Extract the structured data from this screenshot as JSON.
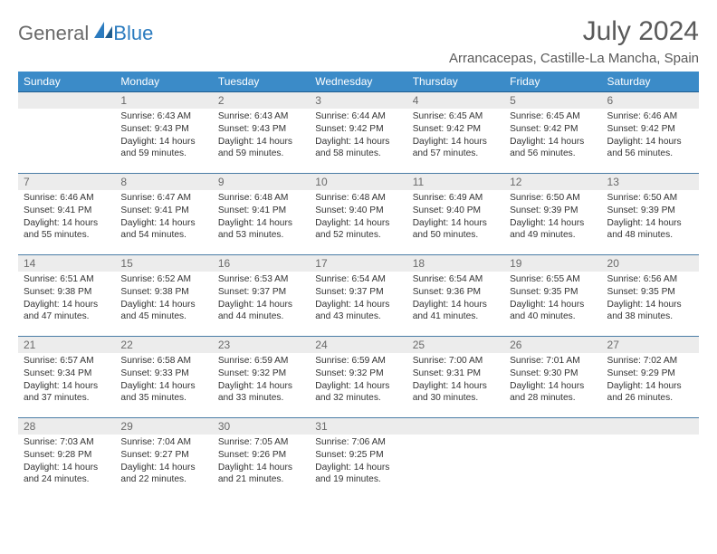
{
  "logo": {
    "text1": "General",
    "text2": "Blue"
  },
  "title": "July 2024",
  "location": "Arrancacepas, Castille-La Mancha, Spain",
  "weekdays": [
    "Sunday",
    "Monday",
    "Tuesday",
    "Wednesday",
    "Thursday",
    "Friday",
    "Saturday"
  ],
  "colors": {
    "header_bg": "#3b8bc8",
    "header_border": "#1f5d8f",
    "row_border": "#4a7da6",
    "daynum_bg": "#ececec",
    "text": "#333333",
    "muted": "#6a6a6a",
    "brand_blue": "#2b7bbf"
  },
  "first_weekday_offset": 1,
  "days": [
    {
      "n": 1,
      "sunrise": "6:43 AM",
      "sunset": "9:43 PM",
      "daylight": "14 hours and 59 minutes."
    },
    {
      "n": 2,
      "sunrise": "6:43 AM",
      "sunset": "9:43 PM",
      "daylight": "14 hours and 59 minutes."
    },
    {
      "n": 3,
      "sunrise": "6:44 AM",
      "sunset": "9:42 PM",
      "daylight": "14 hours and 58 minutes."
    },
    {
      "n": 4,
      "sunrise": "6:45 AM",
      "sunset": "9:42 PM",
      "daylight": "14 hours and 57 minutes."
    },
    {
      "n": 5,
      "sunrise": "6:45 AM",
      "sunset": "9:42 PM",
      "daylight": "14 hours and 56 minutes."
    },
    {
      "n": 6,
      "sunrise": "6:46 AM",
      "sunset": "9:42 PM",
      "daylight": "14 hours and 56 minutes."
    },
    {
      "n": 7,
      "sunrise": "6:46 AM",
      "sunset": "9:41 PM",
      "daylight": "14 hours and 55 minutes."
    },
    {
      "n": 8,
      "sunrise": "6:47 AM",
      "sunset": "9:41 PM",
      "daylight": "14 hours and 54 minutes."
    },
    {
      "n": 9,
      "sunrise": "6:48 AM",
      "sunset": "9:41 PM",
      "daylight": "14 hours and 53 minutes."
    },
    {
      "n": 10,
      "sunrise": "6:48 AM",
      "sunset": "9:40 PM",
      "daylight": "14 hours and 52 minutes."
    },
    {
      "n": 11,
      "sunrise": "6:49 AM",
      "sunset": "9:40 PM",
      "daylight": "14 hours and 50 minutes."
    },
    {
      "n": 12,
      "sunrise": "6:50 AM",
      "sunset": "9:39 PM",
      "daylight": "14 hours and 49 minutes."
    },
    {
      "n": 13,
      "sunrise": "6:50 AM",
      "sunset": "9:39 PM",
      "daylight": "14 hours and 48 minutes."
    },
    {
      "n": 14,
      "sunrise": "6:51 AM",
      "sunset": "9:38 PM",
      "daylight": "14 hours and 47 minutes."
    },
    {
      "n": 15,
      "sunrise": "6:52 AM",
      "sunset": "9:38 PM",
      "daylight": "14 hours and 45 minutes."
    },
    {
      "n": 16,
      "sunrise": "6:53 AM",
      "sunset": "9:37 PM",
      "daylight": "14 hours and 44 minutes."
    },
    {
      "n": 17,
      "sunrise": "6:54 AM",
      "sunset": "9:37 PM",
      "daylight": "14 hours and 43 minutes."
    },
    {
      "n": 18,
      "sunrise": "6:54 AM",
      "sunset": "9:36 PM",
      "daylight": "14 hours and 41 minutes."
    },
    {
      "n": 19,
      "sunrise": "6:55 AM",
      "sunset": "9:35 PM",
      "daylight": "14 hours and 40 minutes."
    },
    {
      "n": 20,
      "sunrise": "6:56 AM",
      "sunset": "9:35 PM",
      "daylight": "14 hours and 38 minutes."
    },
    {
      "n": 21,
      "sunrise": "6:57 AM",
      "sunset": "9:34 PM",
      "daylight": "14 hours and 37 minutes."
    },
    {
      "n": 22,
      "sunrise": "6:58 AM",
      "sunset": "9:33 PM",
      "daylight": "14 hours and 35 minutes."
    },
    {
      "n": 23,
      "sunrise": "6:59 AM",
      "sunset": "9:32 PM",
      "daylight": "14 hours and 33 minutes."
    },
    {
      "n": 24,
      "sunrise": "6:59 AM",
      "sunset": "9:32 PM",
      "daylight": "14 hours and 32 minutes."
    },
    {
      "n": 25,
      "sunrise": "7:00 AM",
      "sunset": "9:31 PM",
      "daylight": "14 hours and 30 minutes."
    },
    {
      "n": 26,
      "sunrise": "7:01 AM",
      "sunset": "9:30 PM",
      "daylight": "14 hours and 28 minutes."
    },
    {
      "n": 27,
      "sunrise": "7:02 AM",
      "sunset": "9:29 PM",
      "daylight": "14 hours and 26 minutes."
    },
    {
      "n": 28,
      "sunrise": "7:03 AM",
      "sunset": "9:28 PM",
      "daylight": "14 hours and 24 minutes."
    },
    {
      "n": 29,
      "sunrise": "7:04 AM",
      "sunset": "9:27 PM",
      "daylight": "14 hours and 22 minutes."
    },
    {
      "n": 30,
      "sunrise": "7:05 AM",
      "sunset": "9:26 PM",
      "daylight": "14 hours and 21 minutes."
    },
    {
      "n": 31,
      "sunrise": "7:06 AM",
      "sunset": "9:25 PM",
      "daylight": "14 hours and 19 minutes."
    }
  ],
  "labels": {
    "sunrise": "Sunrise:",
    "sunset": "Sunset:",
    "daylight": "Daylight:"
  }
}
